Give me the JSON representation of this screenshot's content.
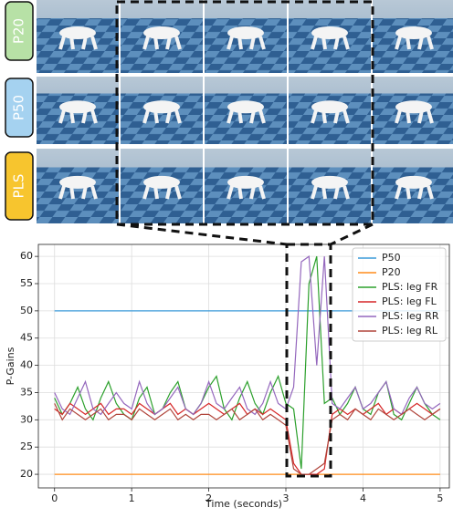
{
  "rows": [
    {
      "label": "P20"
    },
    {
      "label": "P50"
    },
    {
      "label": "PLS"
    }
  ],
  "chart_data": {
    "type": "line",
    "x_label": "Time (seconds)",
    "y_label": "P-Gains",
    "x": [
      0,
      0.1,
      0.2,
      0.3,
      0.4,
      0.5,
      0.6,
      0.7,
      0.8,
      0.9,
      1,
      1.1,
      1.2,
      1.3,
      1.4,
      1.5,
      1.6,
      1.7,
      1.8,
      1.9,
      2,
      2.1,
      2.2,
      2.3,
      2.4,
      2.5,
      2.6,
      2.7,
      2.8,
      2.9,
      3,
      3.1,
      3.2,
      3.3,
      3.4,
      3.5,
      3.6,
      3.7,
      3.8,
      3.9,
      4,
      4.1,
      4.2,
      4.3,
      4.4,
      4.5,
      4.6,
      4.7,
      4.8,
      4.9,
      5
    ],
    "series": [
      {
        "name": "P50",
        "color": "#3a9ad9",
        "values": [
          50,
          50,
          50,
          50,
          50,
          50,
          50,
          50,
          50,
          50,
          50,
          50,
          50,
          50,
          50,
          50,
          50,
          50,
          50,
          50,
          50,
          50,
          50,
          50,
          50,
          50,
          50,
          50,
          50,
          50,
          50,
          50,
          50,
          50,
          50,
          50,
          50,
          50,
          50,
          50,
          50,
          50,
          50,
          50,
          50,
          50,
          50,
          50,
          50,
          50,
          50
        ]
      },
      {
        "name": "P20",
        "color": "#ff8c1a",
        "values": [
          20,
          20,
          20,
          20,
          20,
          20,
          20,
          20,
          20,
          20,
          20,
          20,
          20,
          20,
          20,
          20,
          20,
          20,
          20,
          20,
          20,
          20,
          20,
          20,
          20,
          20,
          20,
          20,
          20,
          20,
          20,
          20,
          20,
          20,
          20,
          20,
          20,
          20,
          20,
          20,
          20,
          20,
          20,
          20,
          20,
          20,
          20,
          20,
          20,
          20,
          20
        ]
      },
      {
        "name": "PLS: leg FR",
        "color": "#2ca02c",
        "values": [
          34,
          31,
          33,
          36,
          32,
          30,
          34,
          37,
          33,
          31,
          30,
          34,
          36,
          31,
          32,
          35,
          37,
          32,
          31,
          33,
          36,
          38,
          32,
          30,
          34,
          37,
          33,
          31,
          35,
          38,
          33,
          32,
          21,
          55,
          60,
          33,
          34,
          31,
          33,
          36,
          32,
          31,
          35,
          37,
          31,
          30,
          33,
          36,
          33,
          31,
          30
        ]
      },
      {
        "name": "PLS: leg FL",
        "color": "#d62728",
        "values": [
          32,
          31,
          33,
          32,
          31,
          32,
          33,
          31,
          32,
          32,
          31,
          33,
          32,
          31,
          32,
          33,
          31,
          32,
          31,
          32,
          33,
          32,
          31,
          32,
          33,
          31,
          32,
          31,
          32,
          31,
          30,
          22,
          20,
          20,
          20,
          21,
          31,
          32,
          31,
          32,
          31,
          32,
          33,
          31,
          32,
          31,
          32,
          33,
          32,
          31,
          32
        ]
      },
      {
        "name": "PLS: leg RR",
        "color": "#9467bd",
        "values": [
          35,
          32,
          31,
          34,
          37,
          32,
          31,
          33,
          35,
          33,
          32,
          37,
          33,
          31,
          32,
          34,
          36,
          32,
          31,
          33,
          37,
          33,
          32,
          34,
          36,
          32,
          31,
          33,
          37,
          33,
          32,
          36,
          59,
          60,
          40,
          60,
          33,
          32,
          34,
          36,
          32,
          33,
          35,
          37,
          32,
          31,
          34,
          36,
          33,
          32,
          33
        ]
      },
      {
        "name": "PLS: leg RL",
        "color": "#b0453b",
        "values": [
          33,
          30,
          32,
          31,
          30,
          31,
          32,
          30,
          31,
          31,
          30,
          32,
          31,
          30,
          31,
          32,
          30,
          31,
          30,
          31,
          31,
          30,
          31,
          32,
          30,
          31,
          32,
          30,
          31,
          30,
          29,
          21,
          20,
          20,
          21,
          22,
          30,
          31,
          30,
          32,
          31,
          30,
          32,
          31,
          30,
          31,
          32,
          31,
          30,
          31,
          32
        ]
      }
    ],
    "xlim": [
      -0.21,
      5.12
    ],
    "ylim": [
      17.5,
      62.2
    ],
    "xticks": [
      0,
      1,
      2,
      3,
      4,
      5
    ],
    "yticks": [
      20,
      25,
      30,
      35,
      40,
      45,
      50,
      55,
      60
    ],
    "grid": true,
    "legend": "upper right"
  }
}
